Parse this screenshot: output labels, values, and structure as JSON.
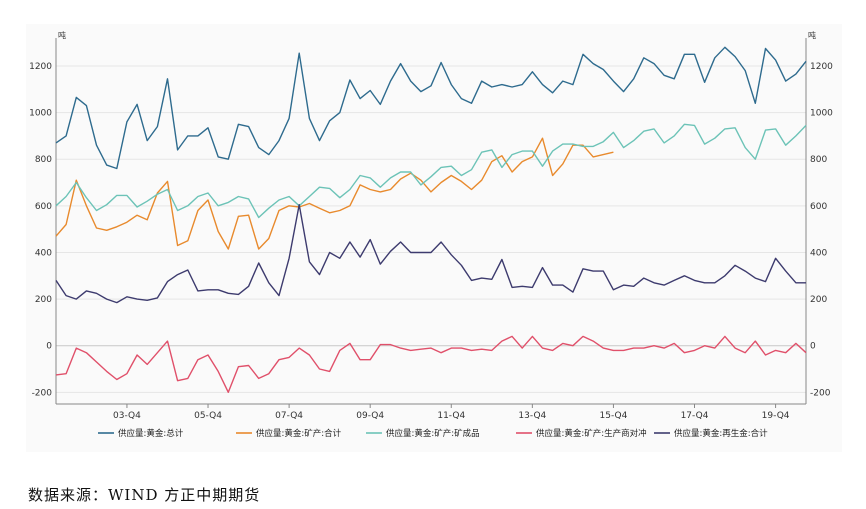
{
  "source_note": "数据来源：WIND  方正中期期货",
  "chart_data": {
    "type": "line",
    "title": "",
    "xlabel": "",
    "ylabel_left": "吨",
    "ylabel_right": "吨",
    "ylim": [
      -250,
      1320
    ],
    "yticks": [
      -200,
      0,
      200,
      400,
      600,
      800,
      1000,
      1200
    ],
    "x_tick_labels": [
      "03-Q4",
      "05-Q4",
      "07-Q4",
      "09-Q4",
      "11-Q4",
      "13-Q4",
      "15-Q4",
      "17-Q4",
      "19-Q4"
    ],
    "grid": true,
    "legend_position": "bottom",
    "x": [
      "2002Q1",
      "2002Q2",
      "2002Q3",
      "2002Q4",
      "2003Q1",
      "2003Q2",
      "2003Q3",
      "2003Q4",
      "2004Q1",
      "2004Q2",
      "2004Q3",
      "2004Q4",
      "2005Q1",
      "2005Q2",
      "2005Q3",
      "2005Q4",
      "2006Q1",
      "2006Q2",
      "2006Q3",
      "2006Q4",
      "2007Q1",
      "2007Q2",
      "2007Q3",
      "2007Q4",
      "2008Q1",
      "2008Q2",
      "2008Q3",
      "2008Q4",
      "2009Q1",
      "2009Q2",
      "2009Q3",
      "2009Q4",
      "2010Q1",
      "2010Q2",
      "2010Q3",
      "2010Q4",
      "2011Q1",
      "2011Q2",
      "2011Q3",
      "2011Q4",
      "2012Q1",
      "2012Q2",
      "2012Q3",
      "2012Q4",
      "2013Q1",
      "2013Q2",
      "2013Q3",
      "2013Q4",
      "2014Q1",
      "2014Q2",
      "2014Q3",
      "2014Q4",
      "2015Q1",
      "2015Q2",
      "2015Q3",
      "2015Q4",
      "2016Q1",
      "2016Q2",
      "2016Q3",
      "2016Q4",
      "2017Q1",
      "2017Q2",
      "2017Q3",
      "2017Q4",
      "2018Q1",
      "2018Q2",
      "2018Q3",
      "2018Q4",
      "2019Q1",
      "2019Q2",
      "2019Q3",
      "2019Q4",
      "2020Q1",
      "2020Q2",
      "2020Q3"
    ],
    "series": [
      {
        "name": "供应量:黄金:总计",
        "color": "#2e6b8e",
        "values": [
          870,
          900,
          1065,
          1030,
          860,
          775,
          760,
          960,
          1035,
          880,
          940,
          1145,
          840,
          900,
          900,
          935,
          810,
          800,
          950,
          940,
          850,
          820,
          880,
          975,
          1255,
          975,
          880,
          965,
          1000,
          1140,
          1060,
          1095,
          1035,
          1135,
          1210,
          1135,
          1090,
          1115,
          1215,
          1120,
          1060,
          1040,
          1135,
          1110,
          1120,
          1110,
          1120,
          1175,
          1120,
          1085,
          1135,
          1120,
          1250,
          1210,
          1185,
          1135,
          1090,
          1145,
          1235,
          1210,
          1160,
          1145,
          1250,
          1250,
          1130,
          1235,
          1280,
          1240,
          1180,
          1040,
          1275,
          1225,
          1135,
          1165,
          1220
        ]
      },
      {
        "name": "供应量:黄金:矿产:合计",
        "color": "#e88a2d",
        "values": [
          470,
          520,
          710,
          600,
          505,
          495,
          510,
          530,
          560,
          540,
          655,
          705,
          430,
          450,
          580,
          625,
          490,
          415,
          555,
          560,
          415,
          460,
          580,
          600,
          595,
          610,
          590,
          570,
          580,
          600,
          690,
          670,
          660,
          670,
          715,
          740,
          710,
          660,
          700,
          730,
          705,
          670,
          710,
          790,
          815,
          745,
          790,
          810,
          890,
          730,
          780,
          860,
          860,
          810,
          820,
          830,
          null,
          null,
          null,
          null,
          null,
          null,
          null,
          null,
          null,
          null,
          null,
          null,
          null,
          null,
          null,
          null,
          null,
          null,
          null
        ]
      },
      {
        "name": "供应量:黄金:矿产:矿成品",
        "color": "#6cc3b7",
        "values": [
          600,
          640,
          700,
          635,
          580,
          605,
          645,
          645,
          595,
          620,
          650,
          670,
          580,
          600,
          640,
          655,
          600,
          615,
          640,
          630,
          550,
          590,
          625,
          640,
          600,
          640,
          680,
          675,
          635,
          670,
          730,
          720,
          680,
          720,
          745,
          745,
          690,
          725,
          765,
          770,
          730,
          755,
          830,
          840,
          765,
          820,
          835,
          835,
          770,
          835,
          865,
          865,
          855,
          855,
          875,
          915,
          850,
          880,
          920,
          930,
          870,
          900,
          950,
          945,
          865,
          890,
          930,
          935,
          850,
          800,
          925,
          930,
          860,
          900,
          945
        ]
      },
      {
        "name": "供应量:黄金:矿产:生产商对冲",
        "color": "#e0506a",
        "values": [
          -125,
          -120,
          -10,
          -30,
          -70,
          -110,
          -145,
          -120,
          -40,
          -80,
          -30,
          20,
          -150,
          -140,
          -60,
          -40,
          -110,
          -200,
          -90,
          -85,
          -140,
          -120,
          -60,
          -50,
          -10,
          -40,
          -100,
          -110,
          -20,
          10,
          -60,
          -60,
          5,
          5,
          -10,
          -20,
          -15,
          -10,
          -30,
          -10,
          -10,
          -20,
          -15,
          -20,
          20,
          40,
          -10,
          40,
          -10,
          -20,
          10,
          0,
          40,
          20,
          -10,
          -20,
          -20,
          -10,
          -10,
          0,
          -10,
          10,
          -30,
          -20,
          0,
          -10,
          40,
          -10,
          -30,
          20,
          -40,
          -20,
          -30,
          10,
          -30
        ]
      },
      {
        "name": "供应量:黄金:再生金:合计",
        "color": "#3d3b6e",
        "values": [
          280,
          215,
          200,
          235,
          225,
          200,
          185,
          210,
          200,
          195,
          205,
          275,
          305,
          325,
          235,
          240,
          240,
          225,
          220,
          255,
          355,
          270,
          215,
          375,
          605,
          360,
          305,
          400,
          375,
          445,
          380,
          455,
          350,
          405,
          445,
          400,
          400,
          400,
          445,
          390,
          345,
          280,
          290,
          285,
          370,
          250,
          255,
          250,
          335,
          260,
          260,
          230,
          330,
          320,
          320,
          240,
          260,
          255,
          290,
          270,
          260,
          280,
          300,
          280,
          270,
          270,
          300,
          345,
          320,
          290,
          275,
          375,
          320,
          270,
          270
        ]
      }
    ]
  }
}
